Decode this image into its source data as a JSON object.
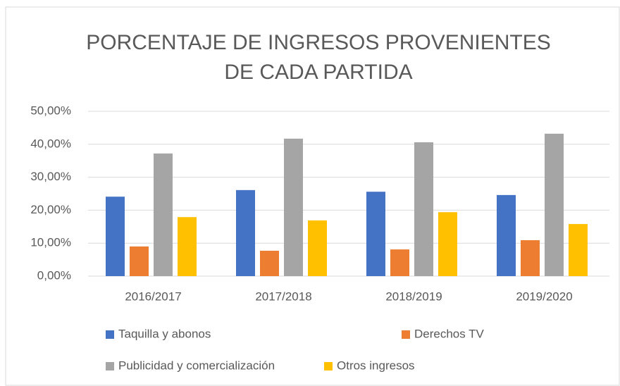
{
  "chart_data": {
    "type": "bar",
    "title": [
      "PORCENTAJE DE INGRESOS PROVENIENTES",
      "DE CADA PARTIDA"
    ],
    "categories": [
      "2016/2017",
      "2017/2018",
      "2018/2019",
      "2019/2020"
    ],
    "series": [
      {
        "name": "Taquilla y abonos",
        "color": "#4472c4",
        "values": [
          24.1,
          26.1,
          25.6,
          24.6
        ]
      },
      {
        "name": "Derechos TV",
        "color": "#ed7d31",
        "values": [
          9.0,
          7.7,
          8.1,
          10.9
        ]
      },
      {
        "name": "Publicidad y comercialización",
        "color": "#a5a5a5",
        "values": [
          37.2,
          41.7,
          40.6,
          43.2
        ]
      },
      {
        "name": "Otros ingresos",
        "color": "#ffc000",
        "values": [
          17.9,
          16.9,
          19.4,
          15.8
        ]
      }
    ],
    "ylim": [
      0,
      50
    ],
    "yticks": [
      {
        "value": 0,
        "label": "0,00%"
      },
      {
        "value": 10,
        "label": "10,00%"
      },
      {
        "value": 20,
        "label": "20,00%"
      },
      {
        "value": 30,
        "label": "30,00%"
      },
      {
        "value": 40,
        "label": "40,00%"
      },
      {
        "value": 50,
        "label": "50,00%"
      }
    ],
    "grid": true,
    "legend": "bottom"
  }
}
